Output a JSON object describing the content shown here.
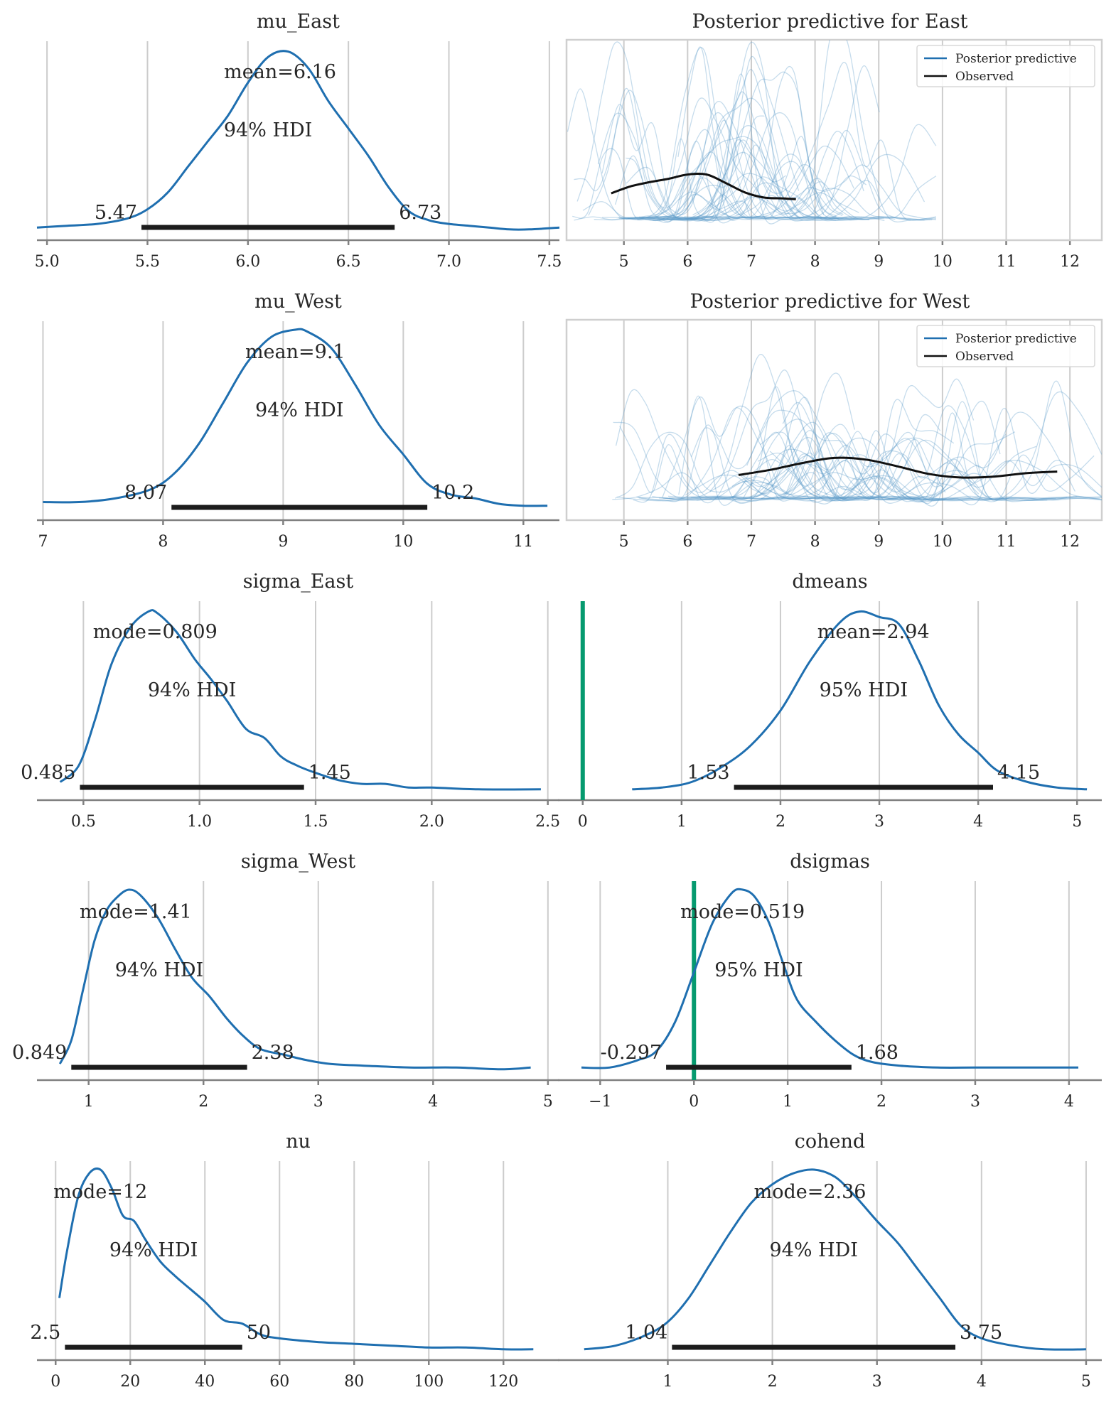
{
  "colors": {
    "kde": "#1f6fb0",
    "hdi_bar": "#1c1c1c",
    "reference_line": "#069a6f",
    "posterior_predictive": "#5b9cc9",
    "observed": "#111111",
    "grid": "#cccccc"
  },
  "chart_data": [
    {
      "id": "mu_east",
      "type": "area",
      "title": "mu_East",
      "xlim": [
        4.95,
        7.55
      ],
      "xticks": [
        "5.0",
        "5.5",
        "6.0",
        "6.5",
        "7.0",
        "7.5"
      ],
      "xtick_values": [
        5.0,
        5.5,
        6.0,
        6.5,
        7.0,
        7.5
      ],
      "point_estimate": "mean=6.16",
      "point_value": 6.16,
      "hdi_label": "94% HDI",
      "hdi": [
        5.47,
        6.73
      ],
      "hdi_labels": [
        "5.47",
        "6.73"
      ],
      "reference_line": null,
      "density": {
        "x": [
          4.95,
          5.1,
          5.25,
          5.4,
          5.5,
          5.6,
          5.7,
          5.8,
          5.9,
          6.0,
          6.1,
          6.2,
          6.3,
          6.4,
          6.5,
          6.6,
          6.7,
          6.8,
          6.9,
          7.0,
          7.1,
          7.2,
          7.3,
          7.4,
          7.55
        ],
        "y": [
          0.03,
          0.04,
          0.05,
          0.08,
          0.13,
          0.22,
          0.36,
          0.5,
          0.64,
          0.82,
          0.96,
          0.99,
          0.9,
          0.72,
          0.57,
          0.42,
          0.25,
          0.12,
          0.07,
          0.05,
          0.04,
          0.03,
          0.02,
          0.02,
          0.03
        ]
      }
    },
    {
      "id": "ppc_east",
      "type": "line",
      "title": "Posterior predictive for East",
      "xlim": [
        4.1,
        12.5
      ],
      "xticks": [
        "5",
        "6",
        "7",
        "8",
        "9",
        "10",
        "11",
        "12"
      ],
      "xtick_values": [
        5,
        6,
        7,
        8,
        9,
        10,
        11,
        12
      ],
      "legend": {
        "placement": "top-right",
        "entries": [
          "Posterior predictive",
          "Observed"
        ]
      },
      "observed": {
        "x": [
          4.8,
          5.1,
          5.4,
          5.7,
          6.0,
          6.3,
          6.6,
          6.9,
          7.2,
          7.5,
          7.7
        ],
        "y": [
          0.4,
          0.48,
          0.53,
          0.57,
          0.62,
          0.62,
          0.52,
          0.41,
          0.35,
          0.34,
          0.33
        ]
      },
      "draws": {
        "count": 40,
        "x_range": [
          4.1,
          9.9
        ],
        "peak_max": 1.85
      }
    },
    {
      "id": "mu_west",
      "type": "area",
      "title": "mu_West",
      "xlim": [
        6.95,
        11.3
      ],
      "xticks": [
        "7",
        "8",
        "9",
        "10",
        "11"
      ],
      "xtick_values": [
        7,
        8,
        9,
        10,
        11
      ],
      "point_estimate": "mean=9.1",
      "point_value": 9.1,
      "hdi_label": "94% HDI",
      "hdi": [
        8.07,
        10.2
      ],
      "hdi_labels": [
        "8.07",
        "10.2"
      ],
      "reference_line": null,
      "density": {
        "x": [
          7.0,
          7.3,
          7.6,
          7.9,
          8.1,
          8.3,
          8.5,
          8.7,
          8.9,
          9.1,
          9.2,
          9.4,
          9.6,
          9.8,
          10.0,
          10.2,
          10.4,
          10.6,
          10.8,
          11.0,
          11.2
        ],
        "y": [
          0.06,
          0.06,
          0.08,
          0.13,
          0.22,
          0.38,
          0.6,
          0.82,
          0.96,
          1.0,
          0.99,
          0.9,
          0.7,
          0.48,
          0.32,
          0.16,
          0.1,
          0.08,
          0.05,
          0.04,
          0.04
        ]
      }
    },
    {
      "id": "ppc_west",
      "type": "line",
      "title": "Posterior predictive for West",
      "xlim": [
        4.1,
        12.5
      ],
      "xticks": [
        "5",
        "6",
        "7",
        "8",
        "9",
        "10",
        "11",
        "12"
      ],
      "xtick_values": [
        5,
        6,
        7,
        8,
        9,
        10,
        11,
        12
      ],
      "legend": {
        "placement": "top-right",
        "entries": [
          "Posterior predictive",
          "Observed"
        ]
      },
      "observed": {
        "x": [
          6.8,
          7.3,
          7.8,
          8.3,
          8.8,
          9.3,
          9.8,
          10.3,
          10.8,
          11.3,
          11.8
        ],
        "y": [
          0.38,
          0.44,
          0.52,
          0.58,
          0.56,
          0.48,
          0.39,
          0.35,
          0.36,
          0.4,
          0.42
        ]
      },
      "draws": {
        "count": 40,
        "x_range": [
          4.8,
          12.5
        ],
        "peak_max": 1.85
      }
    },
    {
      "id": "sigma_east",
      "type": "area",
      "title": "sigma_East",
      "xlim": [
        0.3,
        2.55
      ],
      "xticks": [
        "0.5",
        "1.0",
        "1.5",
        "2.0",
        "2.5"
      ],
      "xtick_values": [
        0.5,
        1.0,
        1.5,
        2.0,
        2.5
      ],
      "point_estimate": "mode=0.809",
      "point_value": 0.809,
      "hdi_label": "94% HDI",
      "hdi": [
        0.485,
        1.45
      ],
      "hdi_labels": [
        "0.485",
        "1.45"
      ],
      "reference_line": null,
      "density": {
        "x": [
          0.4,
          0.48,
          0.55,
          0.62,
          0.7,
          0.78,
          0.82,
          0.9,
          0.98,
          1.05,
          1.12,
          1.2,
          1.28,
          1.35,
          1.42,
          1.5,
          1.6,
          1.7,
          1.8,
          1.9,
          2.0,
          2.2,
          2.47
        ],
        "y": [
          0.06,
          0.15,
          0.4,
          0.7,
          0.9,
          0.99,
          0.98,
          0.88,
          0.73,
          0.62,
          0.5,
          0.35,
          0.3,
          0.2,
          0.15,
          0.11,
          0.07,
          0.05,
          0.05,
          0.03,
          0.03,
          0.02,
          0.02
        ]
      }
    },
    {
      "id": "dmeans",
      "type": "area",
      "title": "dmeans",
      "xlim": [
        -0.25,
        5.25
      ],
      "xticks": [
        "0",
        "1",
        "2",
        "3",
        "4",
        "5"
      ],
      "xtick_values": [
        0,
        1,
        2,
        3,
        4,
        5
      ],
      "point_estimate": "mean=2.94",
      "point_value": 2.94,
      "hdi_label": "95% HDI",
      "hdi": [
        1.53,
        4.15
      ],
      "hdi_labels": [
        "1.53",
        "4.15"
      ],
      "reference_line": 0,
      "density": {
        "x": [
          0.5,
          0.8,
          1.1,
          1.4,
          1.7,
          2.0,
          2.3,
          2.6,
          2.8,
          3.0,
          3.2,
          3.4,
          3.6,
          3.8,
          4.0,
          4.2,
          4.5,
          4.8,
          5.1
        ],
        "y": [
          0.02,
          0.03,
          0.06,
          0.14,
          0.26,
          0.45,
          0.72,
          0.93,
          0.99,
          0.96,
          0.92,
          0.72,
          0.48,
          0.32,
          0.22,
          0.12,
          0.06,
          0.03,
          0.02
        ]
      }
    },
    {
      "id": "sigma_west",
      "type": "area",
      "title": "sigma_West",
      "xlim": [
        0.55,
        5.1
      ],
      "xticks": [
        "1",
        "2",
        "3",
        "4",
        "5"
      ],
      "xtick_values": [
        1,
        2,
        3,
        4,
        5
      ],
      "point_estimate": "mode=1.41",
      "point_value": 1.41,
      "hdi_label": "94% HDI",
      "hdi": [
        0.849,
        2.38
      ],
      "hdi_labels": [
        "0.849",
        "2.38"
      ],
      "reference_line": null,
      "density": {
        "x": [
          0.75,
          0.85,
          0.95,
          1.05,
          1.15,
          1.25,
          1.35,
          1.45,
          1.6,
          1.75,
          1.9,
          2.05,
          2.2,
          2.35,
          2.5,
          2.7,
          2.9,
          3.1,
          3.4,
          3.8,
          4.2,
          4.6,
          4.85
        ],
        "y": [
          0.05,
          0.18,
          0.45,
          0.72,
          0.88,
          0.96,
          1.0,
          0.97,
          0.85,
          0.68,
          0.52,
          0.42,
          0.3,
          0.2,
          0.13,
          0.1,
          0.07,
          0.05,
          0.04,
          0.03,
          0.03,
          0.02,
          0.03
        ]
      }
    },
    {
      "id": "dsigmas",
      "type": "area",
      "title": "dsigmas",
      "xlim": [
        -1.45,
        4.35
      ],
      "xticks": [
        "−1",
        "0",
        "1",
        "2",
        "3",
        "4"
      ],
      "xtick_values": [
        -1,
        0,
        1,
        2,
        3,
        4
      ],
      "point_estimate": "mode=0.519",
      "point_value": 0.519,
      "hdi_label": "95% HDI",
      "hdi": [
        -0.297,
        1.68
      ],
      "hdi_labels": [
        "-0.297",
        "1.68"
      ],
      "reference_line": 0,
      "density": {
        "x": [
          -1.2,
          -0.9,
          -0.6,
          -0.4,
          -0.2,
          0.0,
          0.2,
          0.4,
          0.52,
          0.65,
          0.8,
          0.95,
          1.1,
          1.3,
          1.5,
          1.7,
          1.9,
          2.2,
          2.6,
          3.0,
          3.5,
          4.1
        ],
        "y": [
          0.03,
          0.03,
          0.07,
          0.12,
          0.28,
          0.55,
          0.82,
          0.98,
          1.0,
          0.96,
          0.82,
          0.6,
          0.4,
          0.28,
          0.18,
          0.1,
          0.06,
          0.04,
          0.03,
          0.03,
          0.03,
          0.03
        ]
      }
    },
    {
      "id": "nu",
      "type": "area",
      "title": "nu",
      "xlim": [
        -5,
        135
      ],
      "xticks": [
        "0",
        "20",
        "40",
        "60",
        "80",
        "100",
        "120"
      ],
      "xtick_values": [
        0,
        20,
        40,
        60,
        80,
        100,
        120
      ],
      "point_estimate": "mode=12",
      "point_value": 12,
      "hdi_label": "94% HDI",
      "hdi": [
        2.5,
        50
      ],
      "hdi_labels": [
        "2.5",
        "50"
      ],
      "reference_line": null,
      "density": {
        "x": [
          1,
          3,
          6,
          9,
          12,
          15,
          18,
          21,
          24,
          28,
          32,
          36,
          40,
          45,
          50,
          55,
          60,
          70,
          80,
          90,
          100,
          110,
          120,
          128
        ],
        "y": [
          0.3,
          0.55,
          0.85,
          0.98,
          1.0,
          0.9,
          0.75,
          0.72,
          0.62,
          0.5,
          0.42,
          0.35,
          0.28,
          0.18,
          0.16,
          0.1,
          0.08,
          0.06,
          0.05,
          0.04,
          0.03,
          0.03,
          0.02,
          0.02
        ]
      }
    },
    {
      "id": "cohend",
      "type": "area",
      "title": "cohend",
      "xlim": [
        -0.05,
        5.15
      ],
      "xticks": [
        "1",
        "2",
        "3",
        "4",
        "5"
      ],
      "xtick_values": [
        1,
        2,
        3,
        4,
        5
      ],
      "point_estimate": "mode=2.36",
      "point_value": 2.36,
      "hdi_label": "94% HDI",
      "hdi": [
        1.04,
        3.75
      ],
      "hdi_labels": [
        "1.04",
        "3.75"
      ],
      "reference_line": null,
      "density": {
        "x": [
          0.2,
          0.5,
          0.8,
          1.0,
          1.2,
          1.4,
          1.6,
          1.8,
          2.0,
          2.2,
          2.4,
          2.6,
          2.8,
          3.0,
          3.2,
          3.4,
          3.6,
          3.8,
          4.0,
          4.3,
          4.6,
          5.0
        ],
        "y": [
          0.02,
          0.04,
          0.1,
          0.17,
          0.3,
          0.48,
          0.66,
          0.82,
          0.92,
          0.98,
          1.0,
          0.96,
          0.85,
          0.72,
          0.6,
          0.45,
          0.3,
          0.15,
          0.08,
          0.04,
          0.02,
          0.02
        ]
      }
    }
  ]
}
